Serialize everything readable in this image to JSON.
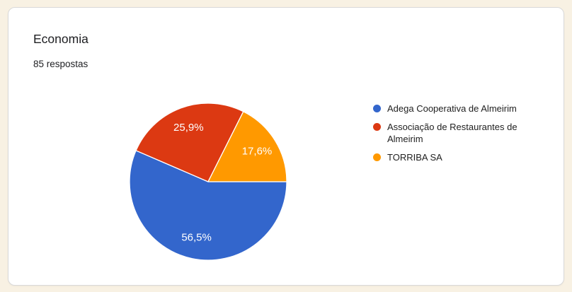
{
  "page": {
    "background_color": "#F8F1E3"
  },
  "card": {
    "title": "Economia",
    "subtitle": "85 respostas"
  },
  "chart_data": {
    "type": "pie",
    "title": "Economia",
    "responses_label": "85 respostas",
    "total_responses": 85,
    "legend_position": "right",
    "start_angle_deg_clockwise_from_top": 90,
    "categories": [
      "Adega Cooperativa de Almeirim",
      "Associação de Restaurantes de Almeirim",
      "TORRIBA SA"
    ],
    "values": [
      56.5,
      25.9,
      17.6
    ],
    "slices": [
      {
        "label": "Adega Cooperativa de Almeirim",
        "value_pct": 56.5,
        "display": "56,5%",
        "color": "#3366CC"
      },
      {
        "label": "Associação de Restaurantes de Almeirim",
        "value_pct": 25.9,
        "display": "25,9%",
        "color": "#DC3912"
      },
      {
        "label": "TORRIBA SA",
        "value_pct": 17.6,
        "display": "17,6%",
        "color": "#FF9900"
      }
    ]
  }
}
